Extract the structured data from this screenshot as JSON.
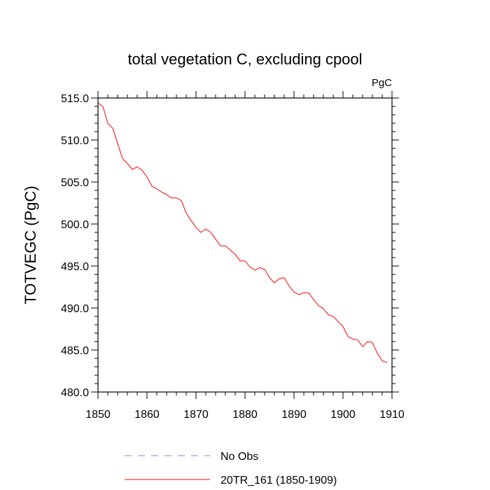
{
  "chart_data": {
    "type": "line",
    "title": "total vegetation C, excluding cpool",
    "units_label": "PgC",
    "ylabel": "TOTVEGC  (PgC)",
    "xlabel": "",
    "xlim": [
      1850,
      1910
    ],
    "ylim": [
      480.0,
      515.0
    ],
    "xticks": [
      1850,
      1860,
      1870,
      1880,
      1890,
      1900,
      1910
    ],
    "xtick_labels": [
      "1850",
      "1860",
      "1870",
      "1880",
      "1890",
      "1900",
      "1910"
    ],
    "yticks": [
      480.0,
      485.0,
      490.0,
      495.0,
      500.0,
      505.0,
      510.0,
      515.0
    ],
    "ytick_labels": [
      "480.0",
      "485.0",
      "490.0",
      "495.0",
      "500.0",
      "505.0",
      "510.0",
      "515.0"
    ],
    "grid": false,
    "legend_position": "bottom",
    "legend": [
      {
        "label": "No Obs",
        "color": "#8080ff",
        "style": "dashed"
      },
      {
        "label": "20TR_161 (1850-1909)",
        "color": "#ff0000",
        "style": "solid"
      }
    ],
    "series": [
      {
        "name": "20TR_161 (1850-1909)",
        "color": "#ff0000",
        "x": [
          1850,
          1851,
          1852,
          1853,
          1854,
          1855,
          1856,
          1857,
          1858,
          1859,
          1860,
          1861,
          1862,
          1863,
          1864,
          1865,
          1866,
          1867,
          1868,
          1869,
          1870,
          1871,
          1872,
          1873,
          1874,
          1875,
          1876,
          1877,
          1878,
          1879,
          1880,
          1881,
          1882,
          1883,
          1884,
          1885,
          1886,
          1887,
          1888,
          1889,
          1890,
          1891,
          1892,
          1893,
          1894,
          1895,
          1896,
          1897,
          1898,
          1899,
          1900,
          1901,
          1902,
          1903,
          1904,
          1905,
          1906,
          1907,
          1908,
          1909
        ],
        "values": [
          514.4,
          514.0,
          512.0,
          511.4,
          509.6,
          507.8,
          507.2,
          506.5,
          506.8,
          506.4,
          505.6,
          504.5,
          504.2,
          503.8,
          503.5,
          503.1,
          503.1,
          502.8,
          501.3,
          500.4,
          499.6,
          499.0,
          499.4,
          499.0,
          498.2,
          497.4,
          497.4,
          496.9,
          496.4,
          495.6,
          495.6,
          494.9,
          494.5,
          494.8,
          494.6,
          493.6,
          493.0,
          493.5,
          493.6,
          492.6,
          491.9,
          491.6,
          491.8,
          491.8,
          491.0,
          490.3,
          489.9,
          489.2,
          489.0,
          488.4,
          487.8,
          486.6,
          486.3,
          486.2,
          485.4,
          486.0,
          485.9,
          484.6,
          483.7,
          483.5
        ]
      }
    ]
  }
}
